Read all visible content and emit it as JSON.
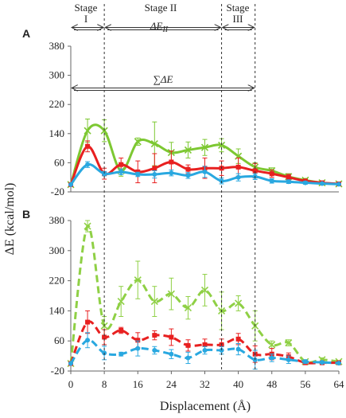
{
  "chart_data": [
    {
      "panel": "A",
      "type": "line",
      "x": [
        0,
        4,
        8,
        12,
        16,
        20,
        24,
        28,
        32,
        36,
        40,
        44,
        48,
        52,
        56,
        60,
        64
      ],
      "ylim": [
        -20,
        380
      ],
      "yticks": [
        -20,
        60,
        140,
        220,
        300,
        380
      ],
      "line_style": "solid",
      "series": [
        {
          "color": "#7dc832",
          "marker": "x",
          "values": [
            0,
            148,
            148,
            38,
            118,
            112,
            88,
            95,
            102,
            108,
            78,
            48,
            38,
            22,
            12,
            5,
            2
          ],
          "errors": [
            0,
            32,
            30,
            15,
            10,
            60,
            28,
            22,
            22,
            18,
            20,
            12,
            8,
            8,
            5,
            3,
            2
          ]
        },
        {
          "color": "#e82020",
          "marker": "square",
          "values": [
            0,
            105,
            30,
            55,
            35,
            45,
            62,
            42,
            45,
            45,
            48,
            38,
            30,
            20,
            10,
            5,
            2
          ],
          "errors": [
            0,
            15,
            15,
            18,
            30,
            40,
            30,
            12,
            28,
            20,
            25,
            20,
            10,
            8,
            5,
            3,
            2
          ]
        },
        {
          "color": "#29a8e0",
          "marker": "circle",
          "values": [
            0,
            55,
            30,
            35,
            28,
            28,
            32,
            25,
            35,
            10,
            20,
            22,
            10,
            8,
            5,
            3,
            1
          ],
          "errors": [
            0,
            8,
            6,
            8,
            6,
            10,
            8,
            8,
            15,
            8,
            10,
            8,
            6,
            5,
            4,
            2,
            1
          ]
        }
      ]
    },
    {
      "panel": "B",
      "type": "line",
      "x": [
        0,
        4,
        8,
        12,
        16,
        20,
        24,
        28,
        32,
        36,
        40,
        44,
        48,
        52,
        56,
        60,
        64
      ],
      "ylim": [
        -20,
        380
      ],
      "yticks": [
        -20,
        60,
        140,
        220,
        300,
        380
      ],
      "xticks": [
        0,
        8,
        16,
        24,
        32,
        40,
        48,
        56,
        64
      ],
      "line_style": "dashed",
      "series": [
        {
          "color": "#8fd045",
          "marker": "x",
          "values": [
            0,
            365,
            100,
            165,
            222,
            165,
            185,
            148,
            195,
            140,
            160,
            100,
            50,
            55,
            5,
            10,
            5
          ],
          "errors": [
            0,
            15,
            25,
            40,
            50,
            40,
            42,
            30,
            42,
            50,
            20,
            40,
            10,
            8,
            5,
            5,
            3
          ]
        },
        {
          "color": "#e82020",
          "marker": "square",
          "values": [
            0,
            110,
            70,
            88,
            62,
            75,
            70,
            48,
            50,
            50,
            65,
            25,
            25,
            18,
            2,
            2,
            2
          ],
          "errors": [
            0,
            30,
            20,
            8,
            20,
            12,
            22,
            15,
            15,
            15,
            15,
            22,
            15,
            10,
            5,
            3,
            2
          ]
        },
        {
          "color": "#29a8e0",
          "marker": "circle",
          "values": [
            0,
            62,
            28,
            25,
            40,
            35,
            25,
            15,
            35,
            35,
            38,
            10,
            15,
            10,
            5,
            3,
            1
          ],
          "errors": [
            0,
            20,
            18,
            5,
            20,
            10,
            12,
            15,
            10,
            10,
            15,
            25,
            10,
            10,
            5,
            3,
            1
          ]
        }
      ]
    }
  ],
  "labels": {
    "xlabel": "Displacement (Å)",
    "ylabel": "ΔE (kcal/mol)",
    "panel_a": "A",
    "panel_b": "B",
    "stage_i_top": "Stage",
    "stage_i_bottom": "I",
    "stage_ii": "Stage II",
    "delta_e_ii": "ΔE",
    "delta_e_ii_sub": "II",
    "stage_iii_top": "Stage",
    "stage_iii_bottom": "III",
    "sum_delta_e": "∑ΔE"
  },
  "stage_boundaries_x": [
    0,
    8,
    36,
    44
  ]
}
